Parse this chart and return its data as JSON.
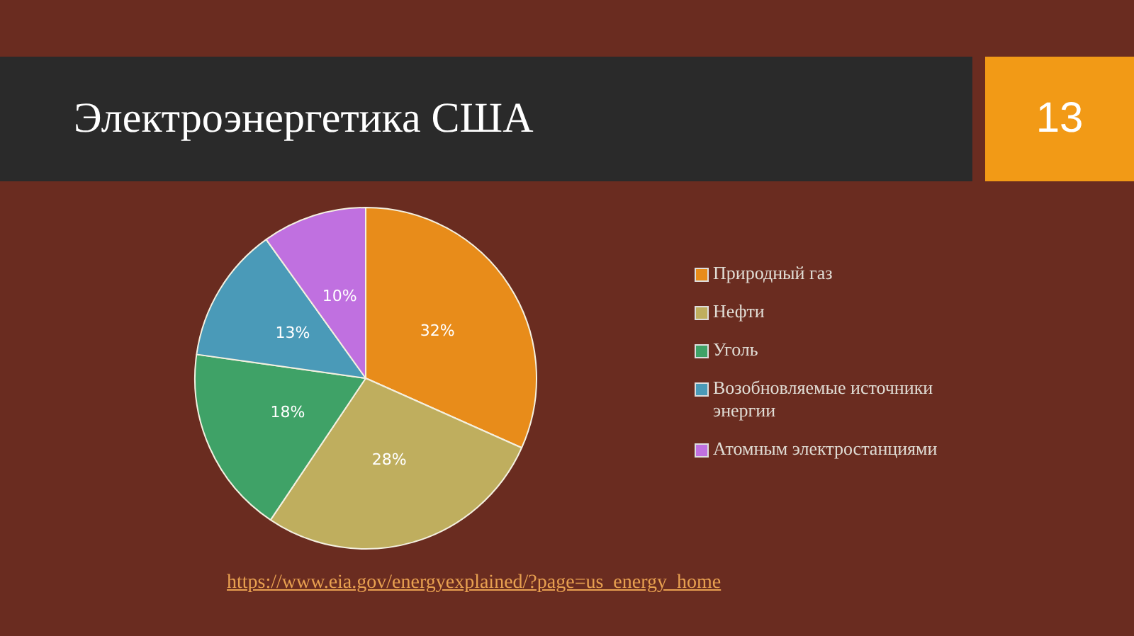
{
  "chart_data": {
    "type": "pie",
    "title": "Электроэнергетика США",
    "categories": [
      "Природный газ",
      "Нефти",
      "Уголь",
      "Возобновляемые источники энергии",
      "Атомным электростанциями"
    ],
    "values": [
      32,
      28,
      18,
      13,
      10
    ],
    "colors": [
      "#e88c1a",
      "#bfae5e",
      "#3fa267",
      "#4a9ab8",
      "#c070e0"
    ],
    "value_labels": [
      "32%",
      "28%",
      "18%",
      "13%",
      "10%"
    ],
    "legend": "right",
    "annotations": [
      "13",
      "https://www.eia.gov/energyexplained/?page=us_energy_home"
    ]
  }
}
